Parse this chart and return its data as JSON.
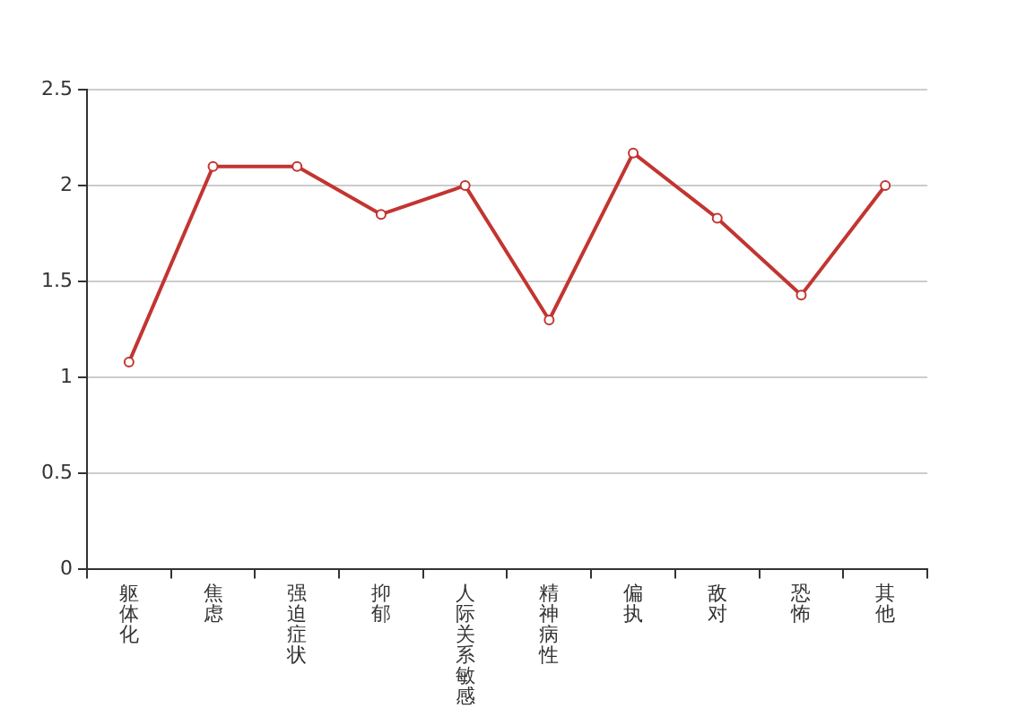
{
  "chart_data": {
    "type": "line",
    "categories": [
      "躯体化",
      "焦虑",
      "强迫症状",
      "抑郁",
      "人际关系敏感",
      "精神病性",
      "偏执",
      "敌对",
      "恐怖",
      "其他"
    ],
    "series": [
      {
        "color": "#c23531",
        "values": [
          1.08,
          2.1,
          2.1,
          1.85,
          2.0,
          1.3,
          2.17,
          1.83,
          1.43,
          2.0
        ]
      }
    ],
    "ylim": [
      0,
      2.5
    ],
    "yticks": [
      0,
      0.5,
      1,
      1.5,
      2,
      2.5
    ],
    "grid": "y",
    "marker": "circle",
    "line_style": "solid",
    "legend": false
  }
}
